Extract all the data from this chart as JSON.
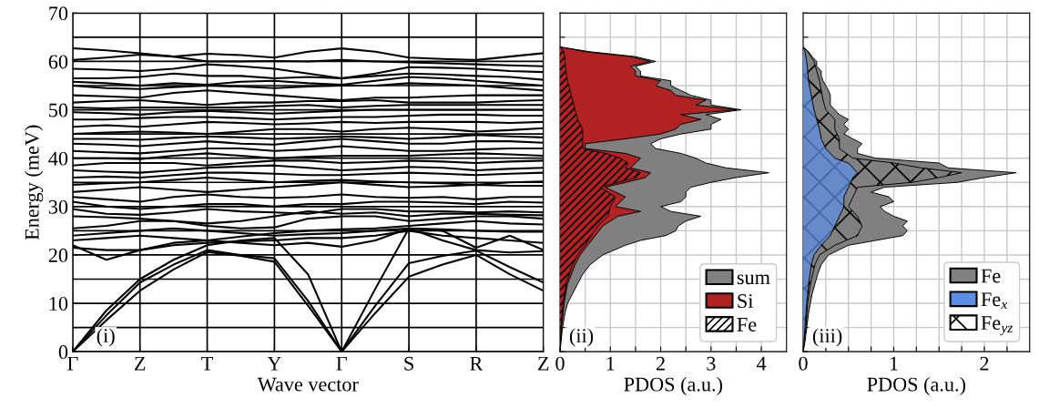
{
  "chart_data": [
    {
      "type": "line",
      "xlabel": "Wave vector",
      "ylabel": "Energy (meV)",
      "annotations": [
        "(i)"
      ],
      "grid": true,
      "categories": [
        "Γ",
        null,
        "Z",
        null,
        "T",
        null,
        "Y",
        null,
        "Γ",
        null,
        "S",
        null,
        "R",
        null,
        "Z"
      ],
      "ylim": [
        0,
        70
      ],
      "yticks": [
        0,
        {
          "value": 5,
          "label": null
        },
        10,
        {
          "value": 15,
          "label": null
        },
        20,
        {
          "value": 25,
          "label": null
        },
        30,
        {
          "value": 35,
          "label": null
        },
        40,
        {
          "value": 45,
          "label": null
        },
        50,
        {
          "value": 55,
          "label": null
        },
        60,
        {
          "value": 65,
          "label": null
        },
        70
      ],
      "series": [
        {
          "color": "#000000",
          "values": [
            0,
            6.5,
            12.6,
            17,
            20.6,
            19.8,
            18.6,
            9.5,
            0,
            8,
            15.5,
            18,
            20,
            16,
            12.6
          ]
        },
        {
          "color": "#000000",
          "values": [
            0,
            7.5,
            14.3,
            18,
            21,
            20,
            19.3,
            10.5,
            0,
            9.5,
            18.3,
            19.8,
            20.9,
            17.5,
            14.3
          ]
        },
        {
          "color": "#000000",
          "values": [
            0,
            8.5,
            15,
            19,
            22,
            23,
            23.5,
            16,
            0,
            13,
            25.5,
            23,
            21,
            20.5,
            20.8
          ]
        },
        {
          "color": "#000000",
          "values": [
            22,
            19,
            21,
            22.5,
            23,
            22.5,
            22,
            22.5,
            21.7,
            23,
            25.5,
            25,
            21.5,
            24,
            21
          ]
        },
        {
          "color": "#000000",
          "values": [
            21.5,
            21,
            21,
            22,
            22.5,
            22.8,
            23,
            23.5,
            23.5,
            24,
            25,
            24,
            23.5,
            23,
            22.5
          ]
        },
        {
          "color": "#000000",
          "values": [
            24,
            24.5,
            25,
            25.5,
            25,
            24.5,
            24,
            24.3,
            24.5,
            25,
            25.5,
            25.3,
            25,
            24.8,
            24.8
          ]
        },
        {
          "color": "#000000",
          "values": [
            23,
            23.5,
            24,
            23.5,
            23,
            23.8,
            24.5,
            25,
            25.3,
            25.5,
            26,
            26.5,
            27,
            26.5,
            26.3
          ]
        },
        {
          "color": "#000000",
          "values": [
            25.5,
            26,
            27,
            27,
            26,
            25.5,
            25.7,
            27.5,
            28,
            28,
            27,
            27.5,
            28,
            28,
            27.5
          ]
        },
        {
          "color": "#000000",
          "values": [
            28,
            27.8,
            27.5,
            27,
            26.5,
            27,
            28,
            29,
            28.5,
            28.8,
            28,
            28.5,
            28.5,
            28.3,
            28.2
          ]
        },
        {
          "color": "#000000",
          "values": [
            29.5,
            28.5,
            28.3,
            28.8,
            29.5,
            29,
            28.8,
            28.5,
            29.5,
            29.5,
            29,
            29,
            28.8,
            29,
            28.8
          ]
        },
        {
          "color": "#000000",
          "values": [
            31,
            30,
            29.5,
            30,
            30.5,
            30.5,
            30,
            30.5,
            30.5,
            31,
            31,
            30.8,
            30.5,
            31,
            30.8
          ]
        },
        {
          "color": "#000000",
          "values": [
            32,
            31.5,
            31,
            32,
            32.5,
            32,
            31.8,
            32,
            32.5,
            32,
            31.8,
            32,
            31.5,
            32,
            32
          ]
        },
        {
          "color": "#000000",
          "values": [
            33,
            33.5,
            34,
            33.5,
            33,
            33.5,
            34,
            34.5,
            35,
            34.5,
            34,
            34.2,
            34.5,
            34.3,
            34.3
          ]
        },
        {
          "color": "#000000",
          "values": [
            34.5,
            34.8,
            35,
            35.5,
            36,
            35.5,
            35,
            35.3,
            35.5,
            35.2,
            35,
            34.8,
            34.5,
            35,
            35.2
          ]
        },
        {
          "color": "#000000",
          "values": [
            36,
            36.2,
            36,
            36.5,
            37,
            37,
            36.8,
            36.5,
            36.5,
            36.8,
            37,
            36.8,
            36.5,
            36.8,
            37
          ]
        },
        {
          "color": "#000000",
          "values": [
            37.5,
            37.2,
            37,
            37.5,
            38,
            38.3,
            38.5,
            38,
            37.5,
            37.8,
            38.2,
            38,
            37.5,
            37.8,
            38
          ]
        },
        {
          "color": "#000000",
          "values": [
            38.5,
            39,
            39,
            39,
            38.5,
            39,
            39.5,
            39.5,
            39,
            39.2,
            39.5,
            39.3,
            39,
            39.3,
            39.5
          ]
        },
        {
          "color": "#000000",
          "values": [
            40,
            40,
            39.8,
            40.5,
            41,
            40.5,
            40,
            40.3,
            40.5,
            40.5,
            40.5,
            40.8,
            41,
            40.8,
            40.5
          ]
        },
        {
          "color": "#000000",
          "values": [
            41.5,
            41.2,
            41,
            41.5,
            42,
            42,
            41.5,
            41.8,
            42.5,
            42,
            41.5,
            41.5,
            41.8,
            42,
            42
          ]
        },
        {
          "color": "#000000",
          "values": [
            43,
            42.8,
            42.5,
            43,
            43.5,
            43,
            42.8,
            43.5,
            44,
            43.5,
            43,
            43,
            43.5,
            43.5,
            43.2
          ]
        },
        {
          "color": "#000000",
          "values": [
            44,
            44,
            43.8,
            44.2,
            44.5,
            44.3,
            44,
            44.2,
            44.5,
            44.3,
            44,
            44.3,
            44.8,
            44.5,
            44.3
          ]
        },
        {
          "color": "#000000",
          "values": [
            45,
            45.3,
            45.5,
            45.3,
            45,
            45.5,
            46,
            46,
            45.5,
            46,
            46.3,
            46,
            45.5,
            45.8,
            46.2
          ]
        },
        {
          "color": "#000000",
          "values": [
            46.5,
            46.8,
            46.5,
            47,
            47.5,
            47.3,
            47,
            47.2,
            47.5,
            47.3,
            47.5,
            47.5,
            47.5,
            47.3,
            47.5
          ]
        },
        {
          "color": "#000000",
          "values": [
            48,
            48,
            48.3,
            48.5,
            48.5,
            48.3,
            48,
            48.3,
            48.5,
            48.5,
            48.8,
            49,
            49,
            48.8,
            48.8
          ]
        },
        {
          "color": "#000000",
          "values": [
            49.5,
            49.3,
            49,
            49.5,
            49.8,
            49.5,
            49.2,
            49.5,
            49.8,
            50,
            50,
            50,
            50,
            50,
            50
          ]
        },
        {
          "color": "#000000",
          "values": [
            50.5,
            50.3,
            50.5,
            50.5,
            50.5,
            50.5,
            50.8,
            51,
            50.5,
            50.8,
            51,
            51,
            51,
            51,
            51
          ]
        },
        {
          "color": "#000000",
          "values": [
            51.5,
            51.8,
            52,
            51.5,
            51,
            51.5,
            51.5,
            51.8,
            51.8,
            52,
            51.5,
            51.5,
            51.5,
            51.8,
            52
          ]
        },
        {
          "color": "#000000",
          "values": [
            53,
            52.8,
            52.5,
            53.5,
            54,
            53.5,
            53,
            52.5,
            52,
            52.5,
            52.5,
            52.8,
            53,
            53,
            53
          ]
        },
        {
          "color": "#000000",
          "values": [
            55,
            54.5,
            54.3,
            54.7,
            55,
            54.8,
            54.5,
            54.8,
            55,
            55,
            55.5,
            55.3,
            55,
            54.5,
            54
          ]
        },
        {
          "color": "#000000",
          "values": [
            55.8,
            55.5,
            55,
            55.5,
            55.2,
            55.8,
            56,
            55.5,
            55.2,
            56,
            56.8,
            56.5,
            56,
            55.5,
            55
          ]
        },
        {
          "color": "#000000",
          "values": [
            56.5,
            56.5,
            56.8,
            57.5,
            57,
            57,
            56.5,
            56.8,
            56.5,
            57,
            57.5,
            57.3,
            57,
            56.8,
            56.2
          ]
        },
        {
          "color": "#000000",
          "values": [
            58.5,
            58.3,
            58,
            58.5,
            59.4,
            59,
            58.5,
            57.5,
            56.5,
            57.5,
            58.8,
            58.7,
            58.5,
            58,
            57.8
          ]
        },
        {
          "color": "#000000",
          "values": [
            60.3,
            60.8,
            61.4,
            61,
            60,
            60,
            60.1,
            60,
            60.3,
            60,
            59.8,
            59.6,
            59.4,
            59.2,
            59
          ]
        },
        {
          "color": "#000000",
          "values": [
            62.7,
            62.3,
            61.7,
            61,
            61.6,
            61.3,
            60.8,
            62,
            62.7,
            62,
            60.8,
            60.5,
            60.3,
            61,
            61.7
          ]
        }
      ]
    },
    {
      "type": "area",
      "orientation": "horizontal",
      "xlabel": "PDOS (a.u.)",
      "annotations": [
        "(ii)"
      ],
      "grid": true,
      "legend": "bottom right",
      "tick_labels": "x",
      "xlim": [
        0,
        4.5
      ],
      "xticks": [
        0,
        {
          "value": 0.5,
          "label": null
        },
        1,
        {
          "value": 1.5,
          "label": null
        },
        2,
        {
          "value": 2.5,
          "label": null
        },
        3,
        {
          "value": 3.5,
          "label": null
        },
        4
      ],
      "ylim": [
        0,
        70
      ],
      "yticks": [
        0,
        5,
        10,
        15,
        20,
        25,
        30,
        35,
        40,
        45,
        50,
        55,
        60,
        65,
        70
      ],
      "series": [
        {
          "name": "sum",
          "color": "#808080",
          "x": [
            0,
            2,
            5,
            8,
            10,
            12,
            14,
            16,
            18,
            20,
            22,
            23,
            24,
            25,
            26,
            27,
            28,
            29,
            30,
            31,
            32,
            33,
            34,
            35,
            36,
            37,
            38,
            39,
            40,
            41,
            42,
            43,
            44,
            45,
            46,
            47,
            48,
            49,
            50,
            51,
            52,
            53,
            54,
            55,
            56,
            57,
            58,
            59,
            60,
            61,
            62,
            63
          ],
          "values": [
            0,
            0.02,
            0.05,
            0.1,
            0.15,
            0.25,
            0.35,
            0.45,
            0.6,
            0.85,
            1.3,
            1.6,
            2.1,
            2.3,
            2.35,
            2.5,
            2.8,
            2.2,
            2.0,
            2.4,
            2.5,
            2.5,
            2.6,
            3.0,
            3.5,
            4.15,
            3.3,
            2.9,
            2.7,
            2.4,
            1.9,
            1.8,
            2.0,
            2.4,
            3.0,
            3.0,
            3.2,
            2.9,
            3.6,
            3.0,
            3.0,
            2.6,
            2.4,
            2.2,
            2.2,
            1.6,
            1.6,
            1.5,
            1.9,
            1.5,
            0.6,
            0
          ]
        },
        {
          "name": "Si",
          "color": "#b22222",
          "x": [
            0,
            5,
            10,
            14,
            18,
            20,
            22,
            24,
            26,
            28,
            29,
            30,
            31,
            32,
            33,
            34,
            35,
            36,
            37,
            38,
            39,
            40,
            41,
            42,
            43,
            44,
            45,
            46,
            47,
            48,
            49,
            50,
            51,
            52,
            53,
            54,
            55,
            56,
            57,
            58,
            59,
            60,
            61,
            62,
            63
          ],
          "values": [
            0,
            0.03,
            0.08,
            0.15,
            0.3,
            0.4,
            0.55,
            0.7,
            0.85,
            1.15,
            1.6,
            1.1,
            1.2,
            1.3,
            1.1,
            0.9,
            1.3,
            1.7,
            1.8,
            1.4,
            1.5,
            1.6,
            1.3,
            0.5,
            0.5,
            1.3,
            2.0,
            2.3,
            2.4,
            2.8,
            2.4,
            3.5,
            2.7,
            2.9,
            2.3,
            2.2,
            1.9,
            2.0,
            1.5,
            1.5,
            1.4,
            1.8,
            1.4,
            0.5,
            0
          ]
        },
        {
          "name": "Fe",
          "color": "#000000",
          "x": [
            0,
            5,
            10,
            14,
            18,
            20,
            22,
            24,
            26,
            28,
            30,
            32,
            34,
            36,
            37,
            38,
            39,
            40,
            41,
            42,
            44,
            46,
            48,
            50,
            52,
            54,
            56,
            58,
            60,
            62,
            63
          ],
          "values": [
            0,
            0.02,
            0.06,
            0.12,
            0.25,
            0.35,
            0.5,
            0.62,
            0.75,
            0.95,
            1.0,
            1.1,
            0.8,
            1.5,
            1.6,
            1.3,
            1.35,
            1.2,
            0.9,
            0.45,
            0.45,
            0.45,
            0.35,
            0.3,
            0.25,
            0.2,
            0.15,
            0.12,
            0.1,
            0.08,
            0
          ]
        }
      ]
    },
    {
      "type": "area",
      "orientation": "horizontal",
      "xlabel": "PDOS (a.u.)",
      "annotations": [
        "(iii)"
      ],
      "grid": true,
      "legend": "bottom right",
      "tick_labels": "x",
      "xlim": [
        0,
        2.5
      ],
      "xticks": [
        0,
        {
          "value": 0.25,
          "label": null
        },
        {
          "value": 0.5,
          "label": null
        },
        {
          "value": 0.75,
          "label": null
        },
        1,
        {
          "value": 1.25,
          "label": null
        },
        {
          "value": 1.5,
          "label": null
        },
        {
          "value": 1.75,
          "label": null
        },
        2,
        {
          "value": 2.25,
          "label": null
        }
      ],
      "ylim": [
        0,
        70
      ],
      "yticks": [
        0,
        5,
        10,
        15,
        20,
        25,
        30,
        35,
        40,
        45,
        50,
        55,
        60,
        65,
        70
      ],
      "series": [
        {
          "name": "Fe",
          "color": "#808080",
          "x": [
            0,
            2,
            5,
            8,
            10,
            12,
            14,
            16,
            18,
            20,
            22,
            23,
            24,
            25,
            26,
            27,
            28,
            29,
            30,
            31,
            32,
            33,
            34,
            35,
            36,
            37,
            38,
            39,
            40,
            41,
            42,
            43,
            44,
            45,
            46,
            47,
            48,
            49,
            50,
            51,
            52,
            53,
            54,
            55,
            56,
            57,
            58,
            59,
            60,
            61,
            62,
            63
          ],
          "values": [
            0,
            0.02,
            0.04,
            0.06,
            0.08,
            0.1,
            0.13,
            0.16,
            0.2,
            0.28,
            0.5,
            0.8,
            1.1,
            1.15,
            1.1,
            1.15,
            1.0,
            0.9,
            0.85,
            1.0,
            0.95,
            0.75,
            0.9,
            1.7,
            2.0,
            2.35,
            1.6,
            1.5,
            0.8,
            0.6,
            0.6,
            0.65,
            0.55,
            0.45,
            0.5,
            0.45,
            0.5,
            0.4,
            0.35,
            0.3,
            0.3,
            0.3,
            0.28,
            0.25,
            0.22,
            0.2,
            0.2,
            0.15,
            0.15,
            0.1,
            0.06,
            0
          ]
        },
        {
          "name": "Fe$_{x}$",
          "color": "#5b8ee6",
          "x": [
            0,
            5,
            10,
            14,
            18,
            20,
            22,
            24,
            26,
            28,
            30,
            32,
            34,
            36,
            37,
            38,
            39,
            40,
            42,
            44,
            46,
            48,
            50,
            52,
            54,
            56,
            58,
            60,
            62,
            63
          ],
          "values": [
            0,
            0.02,
            0.04,
            0.06,
            0.09,
            0.12,
            0.2,
            0.3,
            0.35,
            0.4,
            0.45,
            0.45,
            0.5,
            0.55,
            0.6,
            0.55,
            0.5,
            0.35,
            0.25,
            0.2,
            0.18,
            0.15,
            0.12,
            0.1,
            0.08,
            0.06,
            0.05,
            0.04,
            0.02,
            0
          ]
        },
        {
          "name": "Fe$_{yz}$",
          "color": "#000000",
          "x": [
            0,
            5,
            10,
            14,
            18,
            20,
            22,
            24,
            26,
            28,
            30,
            32,
            34,
            35,
            36,
            37,
            38,
            39,
            40,
            42,
            44,
            46,
            48,
            50,
            52,
            54,
            56,
            58,
            60,
            62,
            63
          ],
          "values": [
            0,
            0.03,
            0.05,
            0.08,
            0.13,
            0.18,
            0.35,
            0.6,
            0.65,
            0.6,
            0.5,
            0.55,
            0.6,
            1.2,
            1.5,
            1.75,
            1.3,
            1.0,
            0.55,
            0.4,
            0.4,
            0.35,
            0.35,
            0.25,
            0.22,
            0.2,
            0.18,
            0.15,
            0.12,
            0.05,
            0
          ]
        }
      ]
    }
  ]
}
